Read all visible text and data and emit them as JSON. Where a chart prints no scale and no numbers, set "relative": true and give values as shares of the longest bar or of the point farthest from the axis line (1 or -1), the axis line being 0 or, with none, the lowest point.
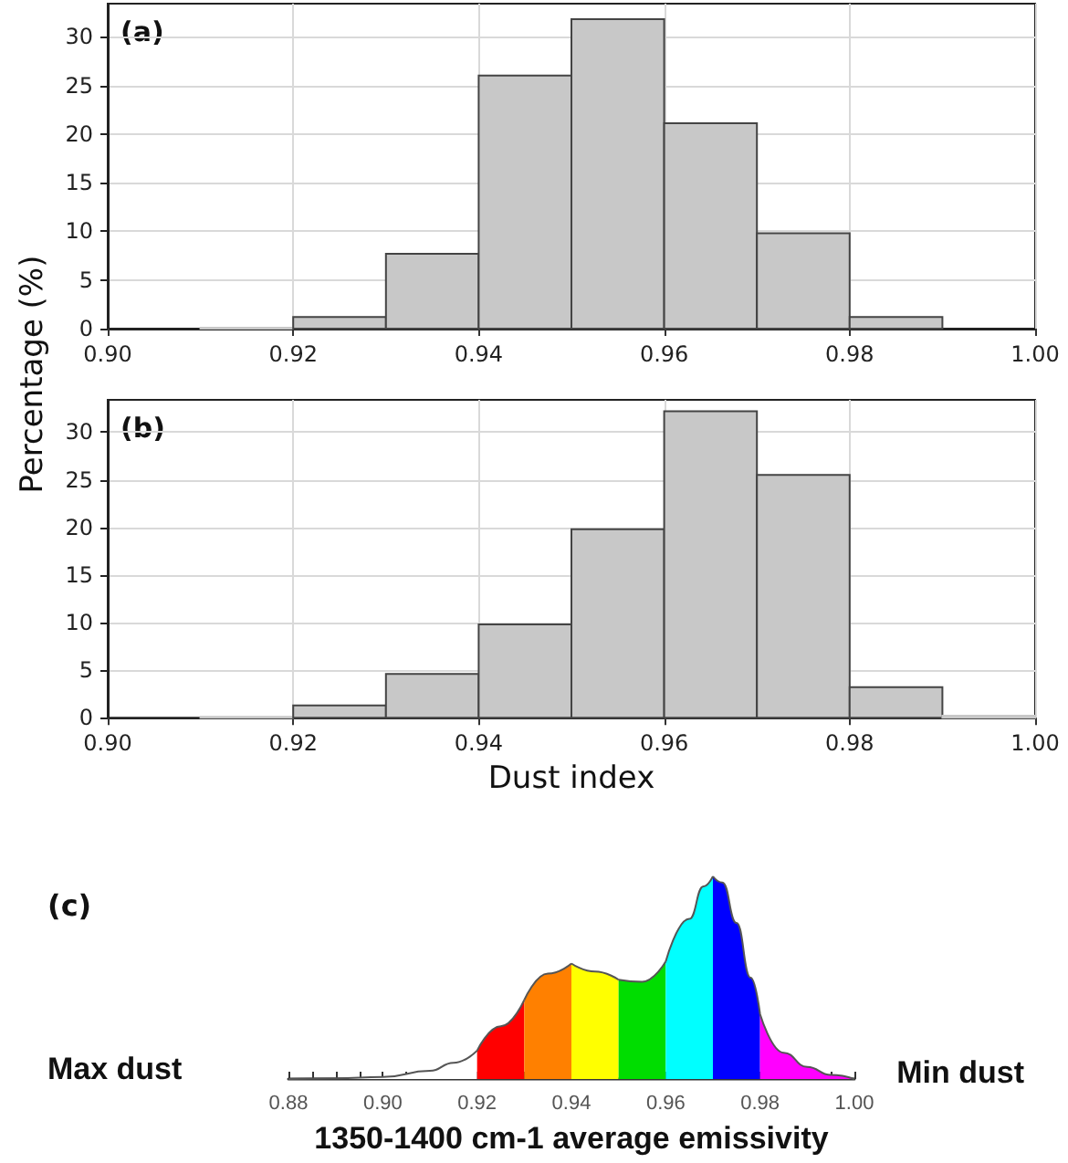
{
  "chart_data": [
    {
      "type": "histogram",
      "ylabel": "Percentage (%)",
      "annotations": [
        "(a)"
      ],
      "bins": [
        0.9,
        0.91,
        0.92,
        0.93,
        0.94,
        0.95,
        0.96,
        0.97,
        0.98,
        0.99,
        1.0
      ],
      "values": [
        0,
        0.1,
        1.2,
        7.7,
        26,
        31.8,
        21.1,
        9.8,
        1.2,
        0
      ],
      "color": "#c8c8c8",
      "xlim": [
        0.9,
        1.0
      ],
      "xticks": [
        {
          "value": 0.9,
          "label": "0.90"
        },
        0.92,
        0.94,
        0.96,
        0.98,
        {
          "value": 1.0,
          "label": "1.00"
        }
      ],
      "ylim": [
        0,
        33.4
      ],
      "yticks": [
        0,
        5,
        10,
        15,
        20,
        25,
        30
      ],
      "grid": true
    },
    {
      "type": "histogram",
      "xlabel": "Dust index",
      "annotations": [
        "(b)"
      ],
      "bins": [
        0.9,
        0.91,
        0.92,
        0.93,
        0.94,
        0.95,
        0.96,
        0.97,
        0.98,
        0.99,
        1.0
      ],
      "values": [
        0,
        0.1,
        1.3,
        4.6,
        9.8,
        19.8,
        32.2,
        25.5,
        3.2,
        0.2
      ],
      "color": "#c8c8c8",
      "xlim": [
        0.9,
        1.0
      ],
      "xticks": [
        {
          "value": 0.9,
          "label": "0.90"
        },
        0.92,
        0.94,
        0.96,
        0.98,
        {
          "value": 1.0,
          "label": "1.00"
        }
      ],
      "ylim": [
        0,
        33.4
      ],
      "yticks": [
        0,
        5,
        10,
        15,
        20,
        25,
        30
      ],
      "grid": true
    },
    {
      "type": "area",
      "relative": true,
      "xlabel": "1350-1400 cm-1 average emissivity",
      "annotations": [
        "(c)",
        "Max dust",
        "Min dust"
      ],
      "xlim": [
        0.88,
        1.0
      ],
      "xticks": [
        0.88,
        {
          "value": 0.885,
          "label": null
        },
        {
          "value": 0.89,
          "label": null
        },
        {
          "value": 0.895,
          "label": null
        },
        {
          "value": 0.9,
          "label": "0.90"
        },
        {
          "value": 0.905,
          "label": null
        },
        {
          "value": 0.91,
          "label": null
        },
        {
          "value": 0.915,
          "label": null
        },
        0.92,
        {
          "value": 0.925,
          "label": null
        },
        {
          "value": 0.93,
          "label": null
        },
        {
          "value": 0.935,
          "label": null
        },
        0.94,
        {
          "value": 0.945,
          "label": null
        },
        {
          "value": 0.95,
          "label": null
        },
        {
          "value": 0.955,
          "label": null
        },
        0.96,
        {
          "value": 0.965,
          "label": null
        },
        {
          "value": 0.97,
          "label": null
        },
        {
          "value": 0.975,
          "label": null
        },
        0.98,
        {
          "value": 0.985,
          "label": null
        },
        {
          "value": 0.99,
          "label": null
        },
        {
          "value": 0.995,
          "label": null
        },
        {
          "value": 1.0,
          "label": "1.00"
        }
      ],
      "series": [
        {
          "color": "#ffffff",
          "x": [
            0.88,
            0.89,
            0.9,
            0.91,
            0.915,
            0.92
          ],
          "values": [
            0,
            0.003,
            0.01,
            0.04,
            0.08,
            0.14
          ]
        },
        {
          "color": "#ff0000",
          "x": [
            0.92,
            0.925,
            0.93
          ],
          "values": [
            0.14,
            0.26,
            0.39
          ]
        },
        {
          "color": "#ff8000",
          "x": [
            0.93,
            0.935,
            0.94
          ],
          "values": [
            0.39,
            0.52,
            0.57
          ]
        },
        {
          "color": "#ffff00",
          "x": [
            0.94,
            0.945,
            0.95
          ],
          "values": [
            0.57,
            0.53,
            0.49
          ]
        },
        {
          "color": "#00dd00",
          "x": [
            0.95,
            0.955,
            0.96
          ],
          "values": [
            0.49,
            0.48,
            0.58
          ]
        },
        {
          "color": "#00ffff",
          "x": [
            0.96,
            0.965,
            0.968,
            0.97
          ],
          "values": [
            0.58,
            0.79,
            0.95,
            1
          ]
        },
        {
          "color": "#0000ff",
          "x": [
            0.97,
            0.972,
            0.975,
            0.978,
            0.98
          ],
          "values": [
            1,
            0.97,
            0.77,
            0.5,
            0.32
          ]
        },
        {
          "color": "#ff00ff",
          "x": [
            0.98,
            0.985,
            0.99,
            0.995,
            1.0
          ],
          "values": [
            0.32,
            0.13,
            0.06,
            0.02,
            0
          ]
        }
      ]
    }
  ]
}
